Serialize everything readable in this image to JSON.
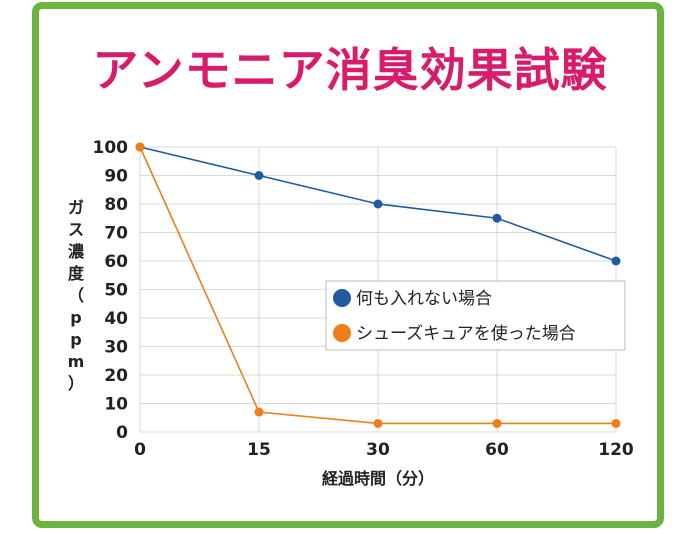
{
  "title": "アンモニア消臭効果試験",
  "colors": {
    "frame": "#6db33f",
    "title": "#d81b6a",
    "series1": "#1f5aa0",
    "series2": "#ee7d1b",
    "grid": "#d9d9d9"
  },
  "chart_data": {
    "type": "line",
    "title": "アンモニア消臭効果試験",
    "xlabel": "経過時間（分）",
    "ylabel": "ガス濃度（ppm）",
    "categories": [
      "0",
      "15",
      "30",
      "60",
      "120"
    ],
    "ylim": [
      0,
      100
    ],
    "yticks": [
      "100",
      "90",
      "80",
      "70",
      "60",
      "50",
      "40",
      "30",
      "20",
      "10",
      "0"
    ],
    "grid": true,
    "legend": "center-right",
    "series": [
      {
        "name": "何も入れない場合",
        "color": "#1f5aa0",
        "values": [
          100,
          90,
          80,
          75,
          60
        ]
      },
      {
        "name": "シューズキュアを使った場合",
        "color": "#ee7d1b",
        "values": [
          100,
          7,
          3,
          3,
          3
        ]
      }
    ]
  }
}
